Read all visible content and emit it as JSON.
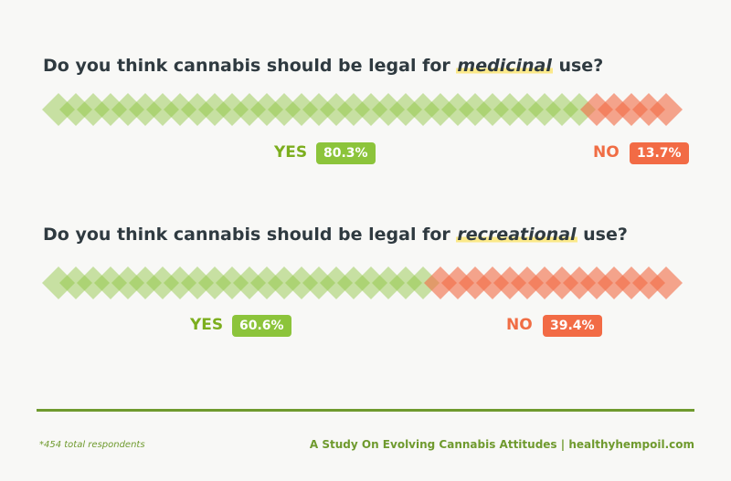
{
  "chart_data": [
    {
      "type": "bar",
      "title_before": "Do you think cannabis should be legal for ",
      "title_emphasis": "medicinal",
      "title_after": " use?",
      "series": [
        {
          "name": "YES",
          "values": [
            80.3
          ],
          "label": "80.3%",
          "color": "#8cc43b"
        },
        {
          "name": "NO",
          "values": [
            13.7
          ],
          "label": "13.7%",
          "color": "#f26b45"
        }
      ]
    },
    {
      "type": "bar",
      "title_before": "Do you think cannabis should be legal for ",
      "title_emphasis": "recreational",
      "title_after": " use?",
      "series": [
        {
          "name": "YES",
          "values": [
            60.6
          ],
          "label": "60.6%",
          "color": "#8cc43b"
        },
        {
          "name": "NO",
          "values": [
            39.4
          ],
          "label": "39.4%",
          "color": "#f26b45"
        }
      ]
    }
  ],
  "footer": {
    "respondents": "*454 total respondents",
    "study": "A Study On Evolving Cannabis Attitudes",
    "separator": "|",
    "site": "healthyhempoil.com"
  },
  "colors": {
    "yes": "#8cc43b",
    "no": "#f26b45",
    "rule": "#6f9a2e",
    "highlight": "#fbe98a"
  }
}
